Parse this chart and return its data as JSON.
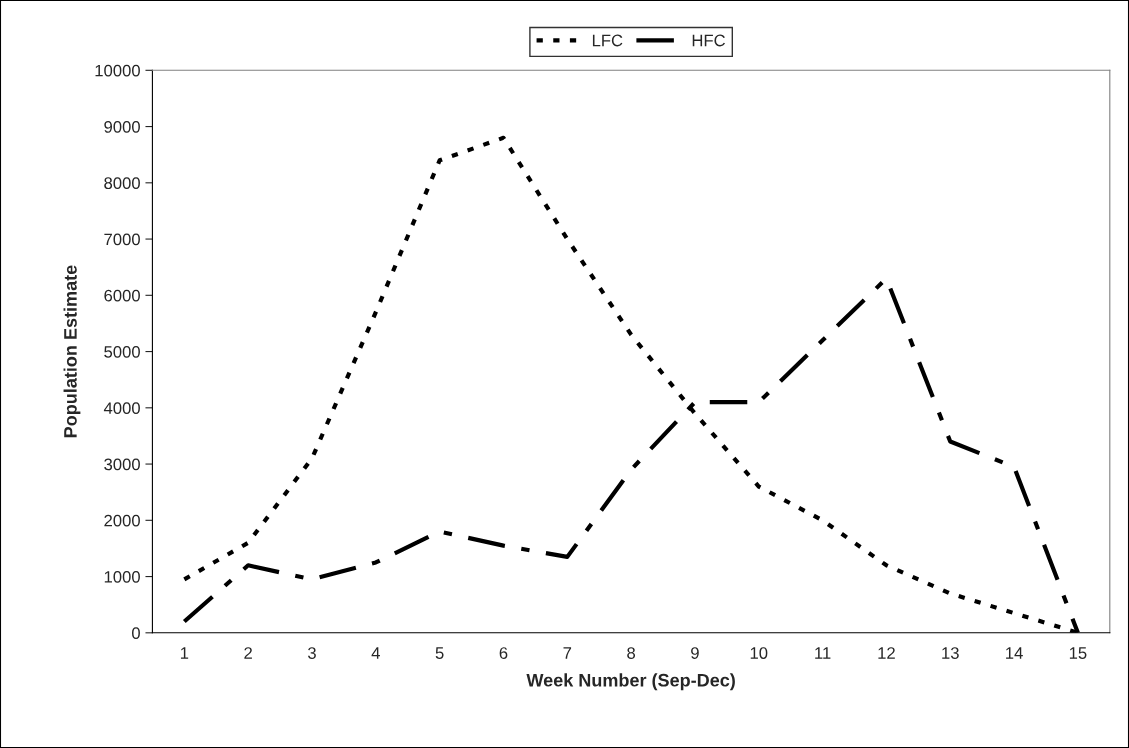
{
  "chart_data": {
    "type": "line",
    "xlabel": "Week Number (Sep-Dec)",
    "ylabel": "Population Estimate",
    "categories": [
      "1",
      "2",
      "3",
      "4",
      "5",
      "6",
      "7",
      "8",
      "9",
      "10",
      "11",
      "12",
      "13",
      "14",
      "15"
    ],
    "series": [
      {
        "name": "LFC",
        "color": "#000000",
        "line_style": "dotted",
        "values": [
          950,
          1600,
          3100,
          5700,
          8400,
          8800,
          7000,
          5300,
          3900,
          2600,
          2000,
          1200,
          700,
          350,
          0
        ]
      },
      {
        "name": "HFC",
        "color": "#000000",
        "line_style": "dashed",
        "values": [
          200,
          1200,
          950,
          1250,
          1800,
          1550,
          1350,
          2900,
          4100,
          4100,
          5200,
          6300,
          3400,
          2950,
          0
        ]
      }
    ],
    "ylim": [
      0,
      10000
    ],
    "yticks": [
      0,
      1000,
      2000,
      3000,
      4000,
      5000,
      6000,
      7000,
      8000,
      9000,
      10000
    ],
    "grid": false,
    "legend": "top",
    "marker": "none"
  }
}
